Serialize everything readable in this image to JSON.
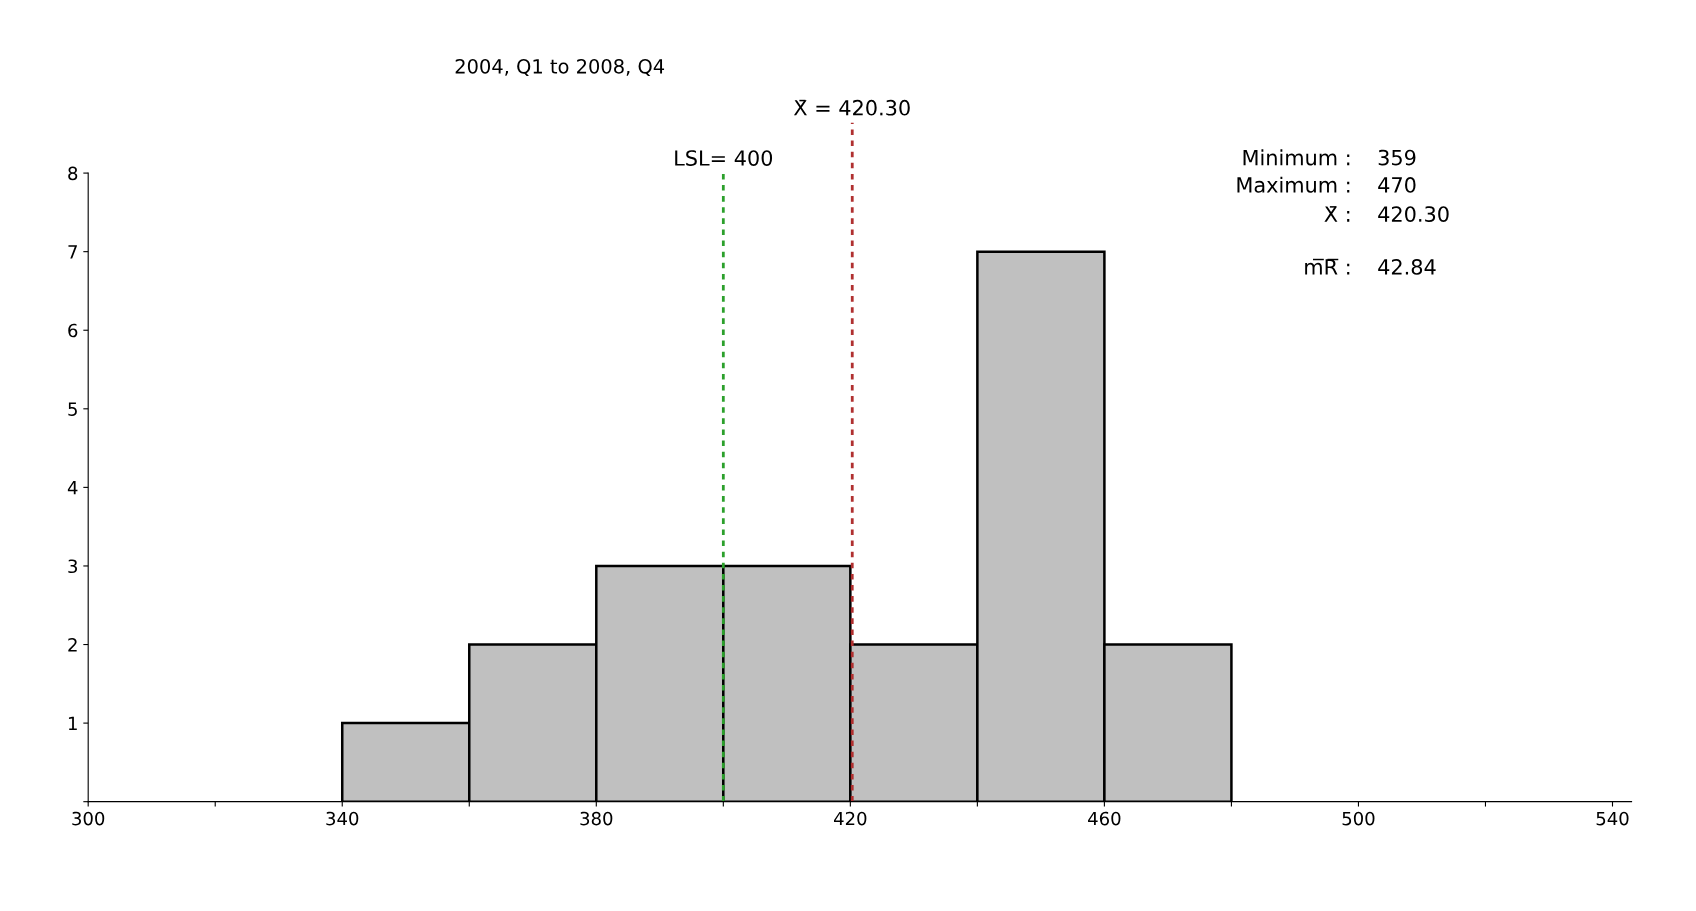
{
  "chart_data": {
    "type": "histogram",
    "title": "2004, Q1 to 2008, Q4",
    "bins": [
      340,
      360,
      380,
      400,
      420,
      440,
      460,
      480
    ],
    "values": [
      1,
      2,
      3,
      3,
      2,
      7,
      2
    ],
    "color": "#c0c0c0",
    "xlim": [
      300,
      543
    ],
    "xticks": [
      300,
      {
        "value": 320,
        "label": null
      },
      340,
      {
        "value": 360,
        "label": null
      },
      380,
      {
        "value": 400,
        "label": null
      },
      420,
      {
        "value": 440,
        "label": null
      },
      460,
      {
        "value": 480,
        "label": null
      },
      500,
      {
        "value": 520,
        "label": null
      },
      540
    ],
    "ylim": [
      0,
      8
    ],
    "yticks": [
      {
        "value": 0,
        "label": null
      },
      1,
      2,
      3,
      4,
      5,
      6,
      7,
      8
    ],
    "ref_lines": [
      {
        "axis": "x",
        "value": 400,
        "label": "LSL= 400",
        "color": "#2ca02c",
        "line_style": "dotted"
      },
      {
        "axis": "x",
        "value": 420.3,
        "label": "X̄ = 420.30",
        "color": "#b03030",
        "line_style": "dotted"
      }
    ],
    "annotations": [
      "Minimum :  359",
      "Maximum :  470",
      "X̄ :  420.30",
      "m̅R̅ :  42.84"
    ],
    "grid": false,
    "legend": false
  }
}
